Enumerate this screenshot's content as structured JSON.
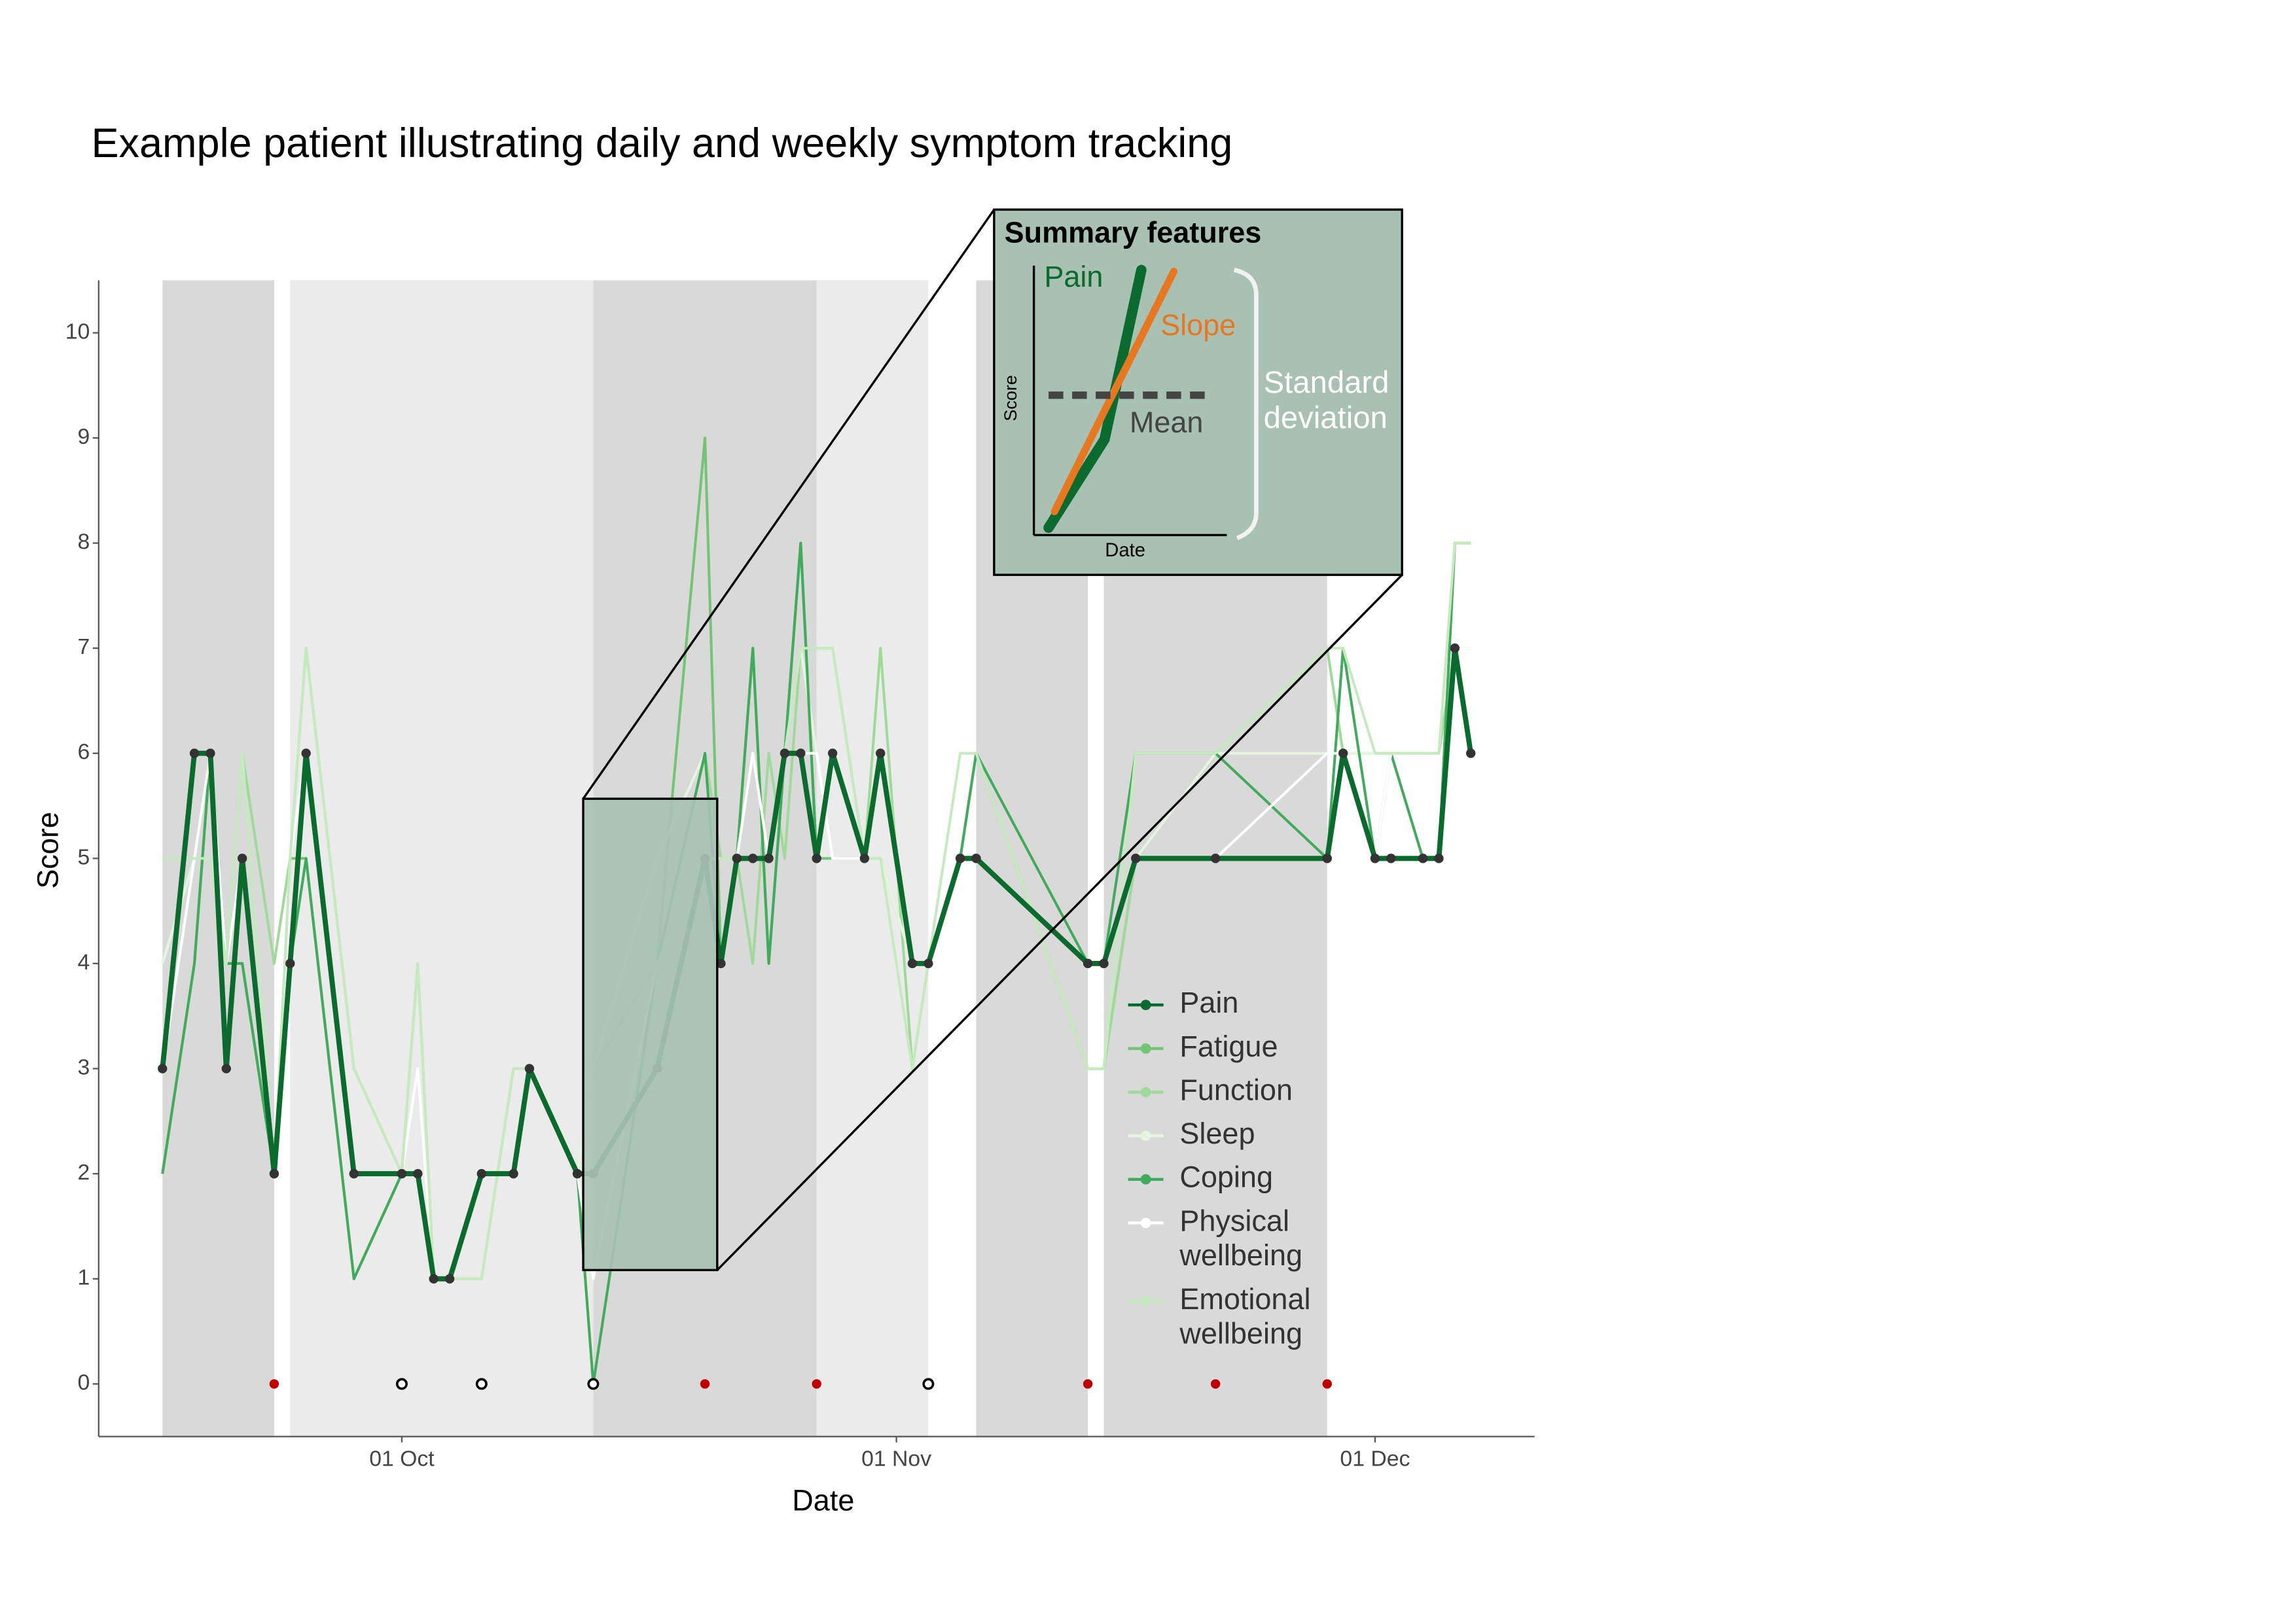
{
  "chart_data": {
    "type": "line",
    "title": "Example patient illustrating daily and weekly symptom tracking",
    "x_label": "Date",
    "y_label": "Score",
    "xlim": [
      "12 Sep",
      "11 Dec"
    ],
    "xticks": [
      "01 Oct",
      "01 Nov",
      "01 Dec"
    ],
    "ylim": [
      -0.5,
      10.5
    ],
    "yticks": [
      0,
      1,
      2,
      3,
      4,
      5,
      6,
      7,
      8,
      9,
      10
    ],
    "grid": false,
    "legend": "right",
    "x": [
      "16 Sep",
      "18 Sep",
      "19 Sep",
      "20 Sep",
      "21 Sep",
      "23 Sep",
      "24 Sep",
      "25 Sep",
      "28 Sep",
      "01 Oct",
      "02 Oct",
      "03 Oct",
      "04 Oct",
      "06 Oct",
      "08 Oct",
      "09 Oct",
      "12 Oct",
      "13 Oct",
      "17 Oct",
      "20 Oct",
      "21 Oct",
      "22 Oct",
      "23 Oct",
      "24 Oct",
      "25 Oct",
      "26 Oct",
      "27 Oct",
      "28 Oct",
      "30 Oct",
      "31 Oct",
      "02 Nov",
      "03 Nov",
      "05 Nov",
      "06 Nov",
      "13 Nov",
      "14 Nov",
      "16 Nov",
      "21 Nov",
      "28 Nov",
      "29 Nov",
      "01 Dec",
      "02 Dec",
      "04 Dec",
      "05 Dec",
      "06 Dec",
      "07 Dec"
    ],
    "series": [
      {
        "name": "Fatigue",
        "color": "#74c476",
        "values": [
          2,
          4,
          6,
          4,
          4,
          2,
          5,
          5,
          1,
          2,
          2,
          1,
          1,
          2,
          2,
          3,
          2,
          1,
          4,
          9,
          4,
          5,
          7,
          4,
          6,
          8,
          5,
          5,
          5,
          5,
          4,
          4,
          5,
          6,
          3,
          3,
          5,
          5,
          5,
          6,
          5,
          5,
          5,
          5,
          8,
          8
        ]
      },
      {
        "name": "Function",
        "color": "#a1d99b",
        "values": [
          4,
          5,
          6,
          4,
          6,
          4,
          5,
          7,
          3,
          2,
          4,
          1,
          1,
          1,
          3,
          3,
          2,
          3,
          4,
          6,
          5,
          5,
          4,
          6,
          5,
          7,
          7,
          7,
          5,
          7,
          3,
          4,
          5,
          6,
          3,
          3,
          5,
          6,
          7,
          6,
          6,
          6,
          6,
          6,
          7,
          7
        ]
      },
      {
        "name": "Sleep",
        "color": "#e5f5e0",
        "values": [
          4,
          5,
          5,
          4,
          5,
          2,
          4,
          6,
          2,
          2,
          2,
          1,
          1,
          2,
          2,
          3,
          2,
          3,
          5,
          6,
          4,
          5,
          6,
          5,
          6,
          7,
          6,
          5,
          5,
          5,
          4,
          4,
          5,
          6,
          4,
          4,
          5,
          6,
          6,
          6,
          6,
          6,
          6,
          6,
          8,
          8
        ]
      },
      {
        "name": "Coping",
        "color": "#41ab5d",
        "values": [
          2,
          4,
          6,
          4,
          4,
          2,
          4,
          5,
          1,
          2,
          2,
          1,
          1,
          2,
          2,
          3,
          2,
          0,
          4,
          6,
          4,
          5,
          7,
          4,
          6,
          8,
          5,
          6,
          5,
          6,
          4,
          4,
          5,
          6,
          4,
          4,
          6,
          6,
          5,
          7,
          5,
          6,
          5,
          5,
          8,
          8
        ]
      },
      {
        "name": "Physical wellbeing",
        "color": "#ffffff",
        "values": [
          3,
          5,
          6,
          4,
          5,
          2,
          5,
          6,
          2,
          2,
          3,
          1,
          1,
          2,
          2,
          3,
          2,
          1,
          4,
          5,
          4,
          5,
          6,
          5,
          6,
          6,
          6,
          5,
          5,
          6,
          4,
          4,
          5,
          5,
          4,
          4,
          5,
          5,
          6,
          6,
          5,
          6,
          6,
          5,
          7,
          7
        ]
      },
      {
        "name": "Emotional wellbeing",
        "color": "#c7e9c0",
        "values": [
          5,
          5,
          5,
          4,
          6,
          2,
          5,
          7,
          3,
          2,
          4,
          1,
          1,
          1,
          3,
          3,
          2,
          2,
          4,
          5,
          5,
          5,
          5,
          5,
          6,
          7,
          7,
          7,
          5,
          5,
          3,
          4,
          6,
          6,
          3,
          3,
          6,
          6,
          7,
          7,
          6,
          6,
          6,
          6,
          8,
          8
        ]
      },
      {
        "name": "Pain",
        "color": "#0b6b2e",
        "values": [
          3,
          6,
          6,
          3,
          5,
          2,
          4,
          6,
          2,
          2,
          2,
          1,
          1,
          2,
          2,
          3,
          2,
          2,
          3,
          5,
          4,
          5,
          5,
          5,
          6,
          6,
          5,
          6,
          5,
          6,
          4,
          4,
          5,
          5,
          4,
          4,
          5,
          5,
          5,
          6,
          5,
          5,
          5,
          5,
          7,
          6
        ]
      }
    ],
    "legend_order": [
      6,
      0,
      1,
      2,
      3,
      4,
      5
    ],
    "bands": [
      {
        "start": "16 Sep",
        "end": "23 Sep",
        "color": "#d9d9d9"
      },
      {
        "start": "24 Sep",
        "end": "13 Oct",
        "color": "#ebebeb"
      },
      {
        "start": "13 Oct",
        "end": "27 Oct",
        "color": "#d9d9d9"
      },
      {
        "start": "27 Oct",
        "end": "03 Nov",
        "color": "#ebebeb"
      },
      {
        "start": "06 Nov",
        "end": "13 Nov",
        "color": "#d9d9d9"
      },
      {
        "start": "14 Nov",
        "end": "28 Nov",
        "color": "#d9d9d9"
      }
    ],
    "events": [
      {
        "color": "#c00000",
        "filled": true,
        "x": [
          "23 Sep",
          "20 Oct",
          "27 Oct",
          "13 Nov",
          "21 Nov",
          "28 Nov"
        ],
        "values": [
          0,
          0,
          0,
          0,
          0,
          0
        ]
      },
      {
        "color": "#000000",
        "filled": false,
        "x": [
          "01 Oct",
          "06 Oct",
          "13 Oct",
          "03 Nov"
        ],
        "values": [
          0,
          0,
          0,
          0
        ]
      }
    ],
    "inset": {
      "title": "Summary features",
      "pain": "Pain",
      "slope": "Slope",
      "mean": "Mean",
      "y_label": "Score",
      "x_label": "Date",
      "spread": "Standard deviation"
    }
  }
}
